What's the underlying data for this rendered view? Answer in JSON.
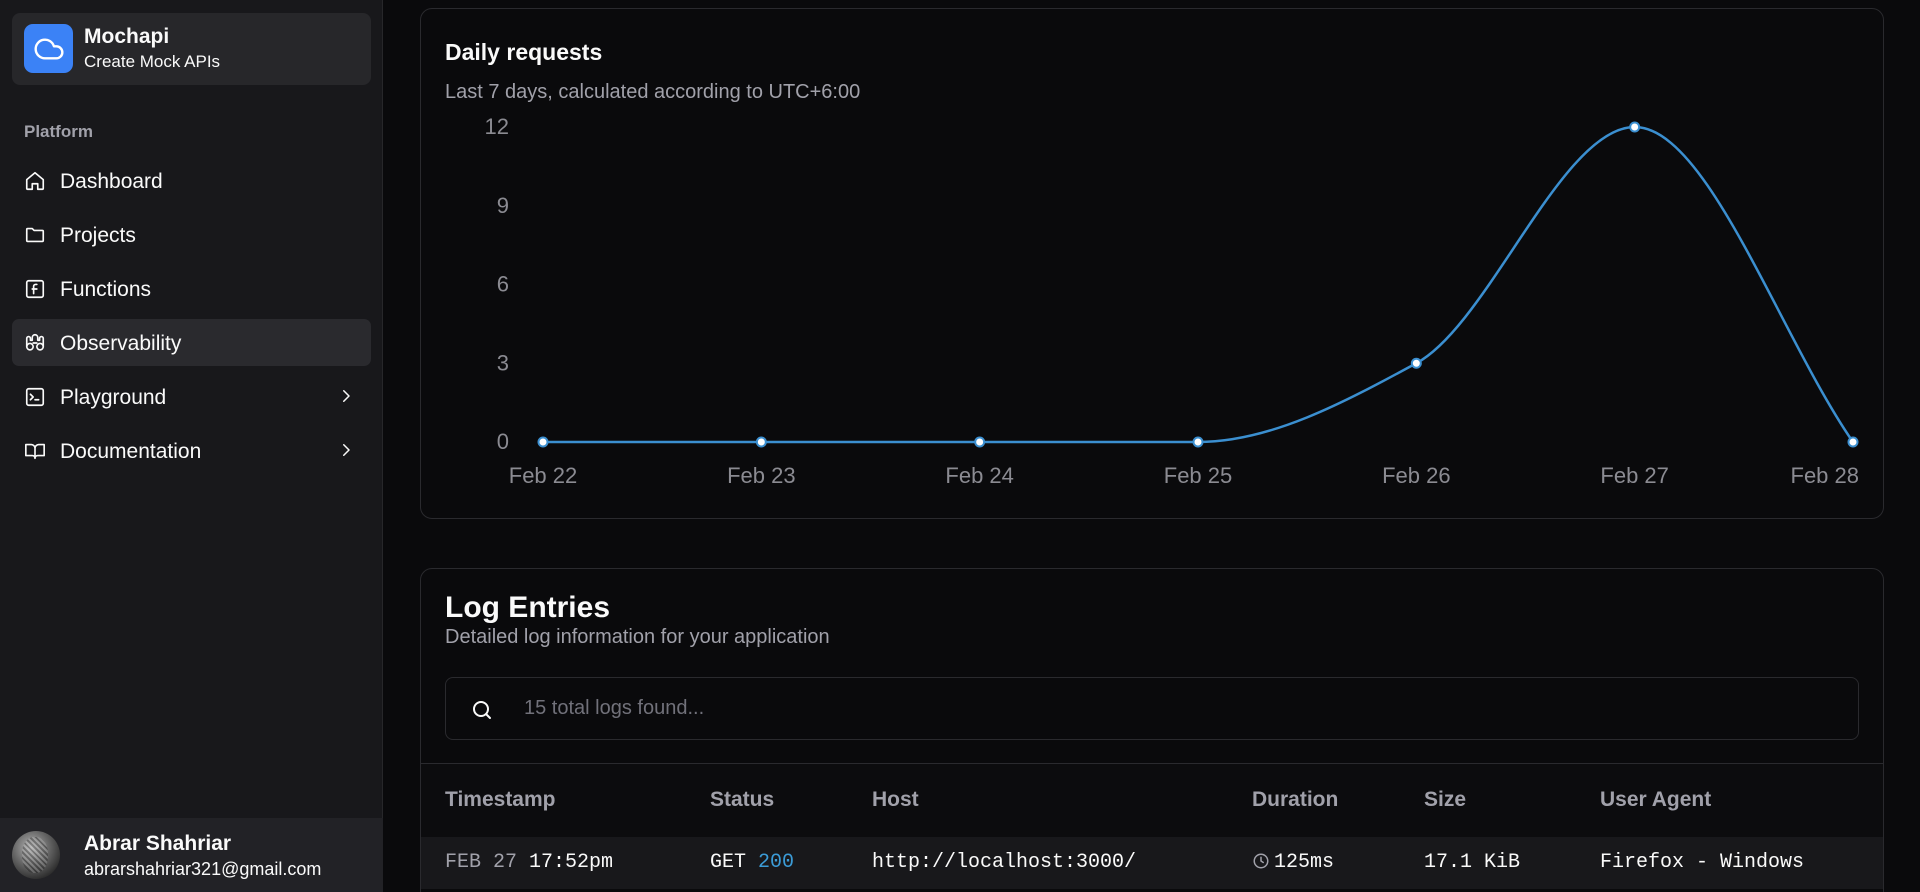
{
  "brand": {
    "name": "Mochapi",
    "subtitle": "Create Mock APIs",
    "icon": "cloud-icon"
  },
  "sidebar": {
    "section_label": "Platform",
    "items": [
      {
        "label": "Dashboard",
        "icon": "home-icon"
      },
      {
        "label": "Projects",
        "icon": "folder-icon"
      },
      {
        "label": "Functions",
        "icon": "function-icon"
      },
      {
        "label": "Observability",
        "icon": "binoculars-icon",
        "active": true
      },
      {
        "label": "Playground",
        "icon": "terminal-icon",
        "has_submenu": true
      },
      {
        "label": "Documentation",
        "icon": "book-icon",
        "has_submenu": true
      }
    ]
  },
  "user": {
    "name": "Abrar Shahriar",
    "email": "abrarshahriar321@gmail.com"
  },
  "chart_card": {
    "title": "Daily requests",
    "subtitle": "Last 7 days, calculated according to UTC+6:00"
  },
  "chart_data": {
    "type": "line",
    "categories": [
      "Feb 22",
      "Feb 23",
      "Feb 24",
      "Feb 25",
      "Feb 26",
      "Feb 27",
      "Feb 28"
    ],
    "series": [
      {
        "values": [
          0,
          0,
          0,
          0,
          3,
          12,
          0
        ]
      }
    ],
    "yticks": [
      0,
      3,
      6,
      9,
      12
    ],
    "ylim": [
      0,
      12
    ],
    "grid": false,
    "line_color": "#3b8fd0",
    "curve": "smooth"
  },
  "logs": {
    "title": "Log Entries",
    "subtitle": "Detailed log information for your application",
    "search_placeholder": "15 total logs found...",
    "columns": [
      "Timestamp",
      "Status",
      "Host",
      "Duration",
      "Size",
      "User Agent"
    ],
    "rows": [
      {
        "date": "FEB 27",
        "time": "17:52pm",
        "method": "GET",
        "status": "200",
        "host": "http://localhost:3000/",
        "duration": "125ms",
        "size": "17.1 KiB",
        "user_agent": "Firefox - Windows"
      }
    ]
  },
  "colors": {
    "accent": "#3b82f6",
    "status_ok": "#3b9bd6",
    "line": "#3b8fd0"
  }
}
